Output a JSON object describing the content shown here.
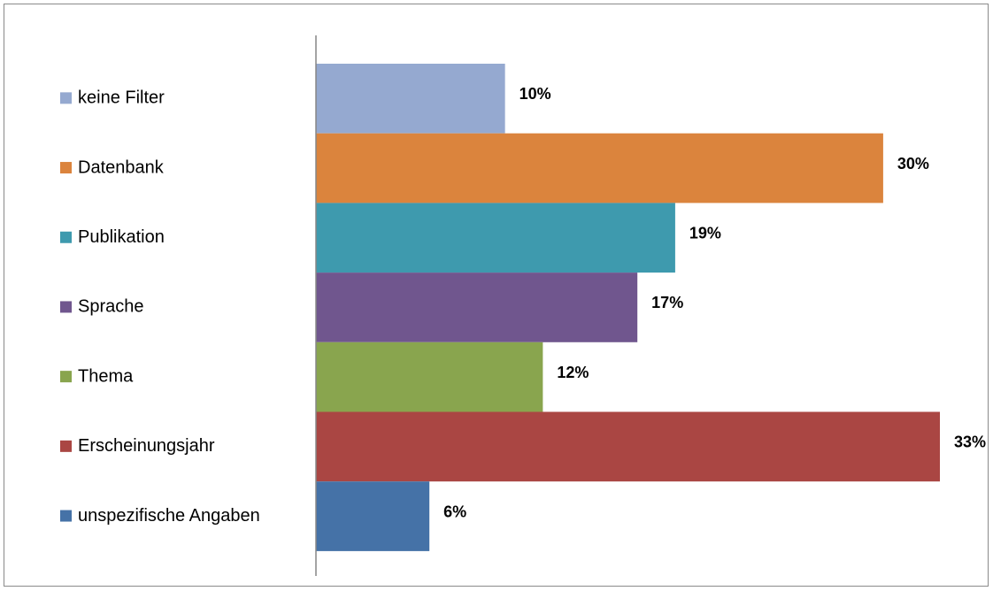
{
  "chart_data": {
    "type": "bar",
    "orientation": "horizontal",
    "categories": [
      "keine Filter",
      "Datenbank",
      "Publikation",
      "Sprache",
      "Thema",
      "Erscheinungsjahr",
      "unspezifische Angaben"
    ],
    "series": [
      {
        "name": "keine Filter",
        "value": 10,
        "label": "10%",
        "color": "#95A9D0"
      },
      {
        "name": "Datenbank",
        "value": 30,
        "label": "30%",
        "color": "#DB843D"
      },
      {
        "name": "Publikation",
        "value": 19,
        "label": "19%",
        "color": "#3E9AAE"
      },
      {
        "name": "Sprache",
        "value": 17,
        "label": "17%",
        "color": "#70568E"
      },
      {
        "name": "Thema",
        "value": 12,
        "label": "12%",
        "color": "#89A54E"
      },
      {
        "name": "Erscheinungsjahr",
        "value": 33,
        "label": "33%",
        "color": "#AA4643"
      },
      {
        "name": "unspezifische Angaben",
        "value": 6,
        "label": "6%",
        "color": "#4572A7"
      }
    ],
    "xlim": [
      0,
      33
    ],
    "value_unit": "%",
    "legend_position": "left",
    "grid": false,
    "title": "",
    "xlabel": "",
    "ylabel": ""
  }
}
